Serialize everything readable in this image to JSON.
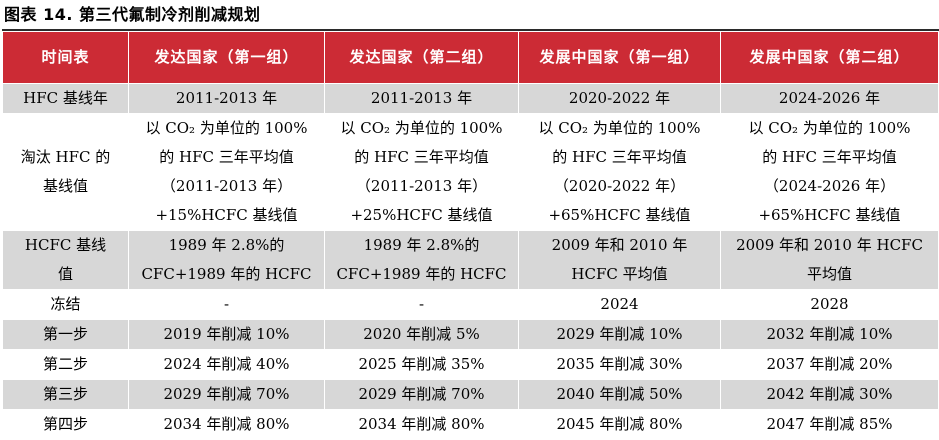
{
  "caption": "图表 14. 第三代氟制冷剂削减规划",
  "table": {
    "headers": [
      "时间表",
      "发达国家（第一组）",
      "发达国家（第二组）",
      "发展中国家（第一组）",
      "发展中国家（第二组）"
    ],
    "rows": [
      {
        "label": [
          "HFC 基线年"
        ],
        "cells": [
          [
            "2011-2013 年"
          ],
          [
            "2011-2013 年"
          ],
          [
            "2020-2022 年"
          ],
          [
            "2024-2026 年"
          ]
        ]
      },
      {
        "label": [
          "淘汰 HFC 的",
          "基线值"
        ],
        "cells": [
          [
            "以 CO₂ 为单位的 100%",
            "的 HFC 三年平均值",
            "（2011-2013 年）",
            "+15%HCFC 基线值"
          ],
          [
            "以 CO₂ 为单位的 100%",
            "的 HFC 三年平均值",
            "（2011-2013 年）",
            "+25%HCFC 基线值"
          ],
          [
            "以 CO₂ 为单位的 100%",
            "的 HFC 三年平均值",
            "（2020-2022 年）",
            "+65%HCFC 基线值"
          ],
          [
            "以 CO₂ 为单位的 100%",
            "的 HFC 三年平均值",
            "（2024-2026 年）",
            "+65%HCFC 基线值"
          ]
        ]
      },
      {
        "label": [
          "HCFC 基线",
          "值"
        ],
        "cells": [
          [
            "1989 年 2.8%的",
            "CFC+1989 年的 HCFC"
          ],
          [
            "1989 年 2.8%的",
            "CFC+1989 年的 HCFC"
          ],
          [
            "2009 年和 2010 年",
            "HCFC 平均值"
          ],
          [
            "2009 年和 2010 年 HCFC",
            "平均值"
          ]
        ]
      },
      {
        "label": [
          "冻结"
        ],
        "cells": [
          [
            "-"
          ],
          [
            "-"
          ],
          [
            "2024"
          ],
          [
            "2028"
          ]
        ]
      },
      {
        "label": [
          "第一步"
        ],
        "cells": [
          [
            "2019 年削减 10%"
          ],
          [
            "2020 年削减 5%"
          ],
          [
            "2029 年削减 10%"
          ],
          [
            "2032 年削减 10%"
          ]
        ]
      },
      {
        "label": [
          "第二步"
        ],
        "cells": [
          [
            "2024 年削减 40%"
          ],
          [
            "2025 年削减 35%"
          ],
          [
            "2035 年削减 30%"
          ],
          [
            "2037 年削减 20%"
          ]
        ]
      },
      {
        "label": [
          "第三步"
        ],
        "cells": [
          [
            "2029 年削减 70%"
          ],
          [
            "2029 年削减 70%"
          ],
          [
            "2040 年削减 50%"
          ],
          [
            "2042 年削减 30%"
          ]
        ]
      },
      {
        "label": [
          "第四步"
        ],
        "cells": [
          [
            "2034 年削减 80%"
          ],
          [
            "2034 年削减 80%"
          ],
          [
            "2045 年削减 80%"
          ],
          [
            "2047 年削减 85%"
          ]
        ]
      }
    ]
  },
  "colors": {
    "header_background": "#cc2b35",
    "header_text": "#ffffff",
    "shaded_row": "#d7d7d7",
    "plain_row": "#ffffff"
  }
}
